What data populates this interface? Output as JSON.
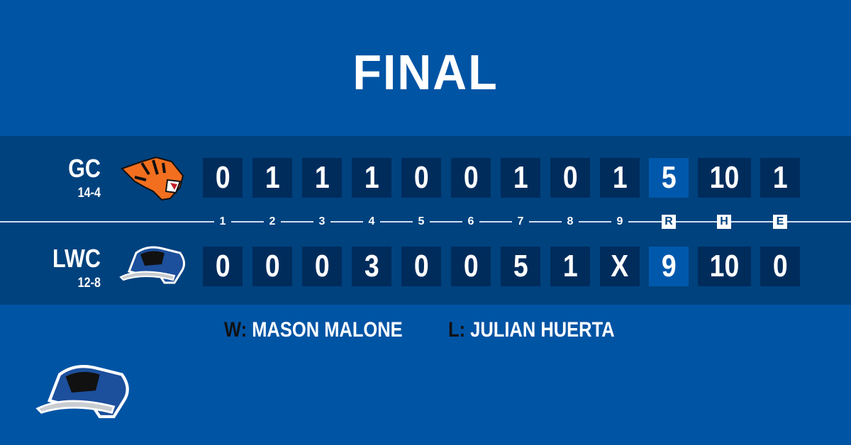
{
  "title": "FINAL",
  "teams": [
    {
      "abbr": "GC",
      "record": "14-4",
      "logo": "tiger-logo",
      "innings": [
        "0",
        "1",
        "1",
        "1",
        "0",
        "0",
        "1",
        "0",
        "1"
      ],
      "r": "5",
      "h": "10",
      "e": "1"
    },
    {
      "abbr": "LWC",
      "record": "12-8",
      "logo": "blue-raider-logo",
      "innings": [
        "0",
        "0",
        "0",
        "3",
        "0",
        "0",
        "5",
        "1",
        "X"
      ],
      "r": "9",
      "h": "10",
      "e": "0"
    }
  ],
  "inning_labels": [
    "1",
    "2",
    "3",
    "4",
    "5",
    "6",
    "7",
    "8",
    "9"
  ],
  "total_labels": {
    "r": "R",
    "h": "H",
    "e": "E"
  },
  "decisions": {
    "win_key": "W:",
    "win": "MASON MALONE",
    "loss_key": "L:",
    "loss": "JULIAN HUERTA"
  },
  "colors": {
    "background": "#0054a4",
    "band": "#00427e",
    "box": "#002c5c",
    "runs_box": "#0058ac"
  }
}
